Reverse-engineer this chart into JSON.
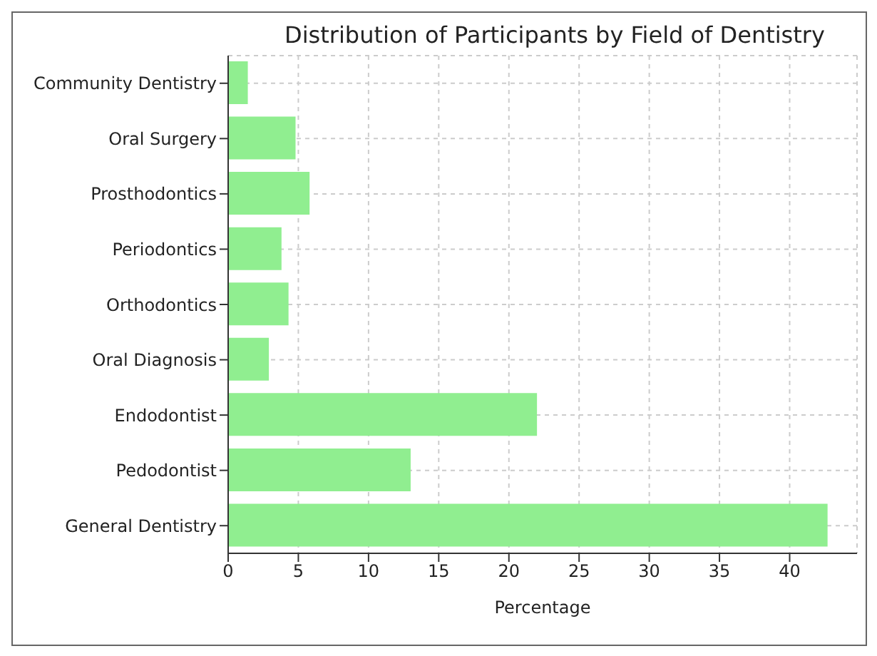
{
  "chart_data": {
    "type": "bar",
    "orientation": "horizontal",
    "title": "Distribution of Participants by Field of Dentistry",
    "xlabel": "Percentage",
    "categories": [
      "Community Dentistry",
      "Oral Surgery",
      "Prosthodontics",
      "Periodontics",
      "Orthodontics",
      "Oral Diagnosis",
      "Endodontist",
      "Pedodontist",
      "General Dentistry"
    ],
    "values": [
      1.4,
      4.8,
      5.8,
      3.8,
      4.3,
      2.9,
      22.0,
      13.0,
      42.7
    ],
    "color": "#90ee90",
    "xlim": [
      0,
      44.8
    ],
    "xticks": [
      0,
      5,
      10,
      15,
      20,
      25,
      30,
      35,
      40
    ],
    "grid": true
  }
}
